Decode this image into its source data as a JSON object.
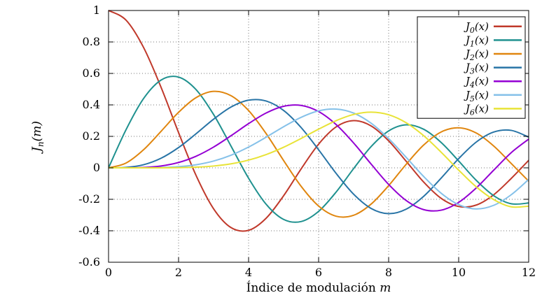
{
  "chart_data": {
    "type": "line",
    "title": "",
    "xlabel": "Índice de modulación m",
    "ylabel": "J_n(m)",
    "xlim": [
      0,
      12
    ],
    "ylim": [
      -0.6,
      1
    ],
    "xticks": [
      0,
      2,
      4,
      6,
      8,
      10,
      12
    ],
    "yticks": [
      -0.6,
      -0.4,
      -0.2,
      0,
      0.2,
      0.4,
      0.6,
      0.8,
      1
    ],
    "grid": "dotted",
    "legend_position": "top-right",
    "x": [
      0,
      0.5,
      1,
      1.5,
      2,
      2.5,
      3,
      3.5,
      4,
      4.5,
      5,
      5.5,
      6,
      6.5,
      7,
      7.5,
      8,
      8.5,
      9,
      9.5,
      10,
      10.5,
      11,
      11.5,
      12
    ],
    "series": [
      {
        "name": "J_0(x)",
        "color": "#c0392b",
        "values": [
          1,
          0.9385,
          0.7652,
          0.5118,
          0.2239,
          -0.0484,
          -0.2601,
          -0.3801,
          -0.3971,
          -0.3205,
          -0.1776,
          -0.0068,
          0.1506,
          0.2601,
          0.3001,
          0.2663,
          0.1717,
          0.0419,
          -0.0903,
          -0.1939,
          -0.2459,
          -0.2366,
          -0.1712,
          -0.0677,
          0.0477
        ]
      },
      {
        "name": "J_1(x)",
        "color": "#1f918f",
        "values": [
          0,
          0.2423,
          0.4401,
          0.5579,
          0.5767,
          0.4971,
          0.3391,
          0.1374,
          -0.066,
          -0.2311,
          -0.3276,
          -0.3414,
          -0.2767,
          -0.1538,
          -0.0047,
          0.1352,
          0.2346,
          0.2731,
          0.2453,
          0.1613,
          0.0435,
          -0.0789,
          -0.1768,
          -0.2284,
          -0.2234
        ]
      },
      {
        "name": "J_2(x)",
        "color": "#e0860f",
        "values": [
          0,
          0.0306,
          0.1149,
          0.2321,
          0.3528,
          0.4461,
          0.4861,
          0.4586,
          0.3641,
          0.2178,
          0.0466,
          -0.1173,
          -0.2429,
          -0.3074,
          -0.3014,
          -0.2303,
          -0.113,
          0.0223,
          0.1448,
          0.2279,
          0.2546,
          0.2216,
          0.139,
          0.0279,
          -0.0849
        ]
      },
      {
        "name": "J_3(x)",
        "color": "#2874a6",
        "values": [
          0,
          0.0026,
          0.0196,
          0.061,
          0.1289,
          0.2166,
          0.3091,
          0.3868,
          0.4302,
          0.4247,
          0.3648,
          0.2561,
          0.1148,
          -0.0353,
          -0.1676,
          -0.2581,
          -0.2911,
          -0.2626,
          -0.1809,
          -0.0653,
          0.0584,
          0.1633,
          0.2273,
          0.2381,
          0.1951
        ]
      },
      {
        "name": "J_4(x)",
        "color": "#9400d3",
        "values": [
          0,
          0.0002,
          0.0025,
          0.0118,
          0.034,
          0.0738,
          0.132,
          0.2044,
          0.2811,
          0.3484,
          0.3912,
          0.3967,
          0.3576,
          0.2748,
          0.1578,
          0.0238,
          -0.1054,
          -0.2077,
          -0.2655,
          -0.2691,
          -0.2196,
          -0.1283,
          -0.015,
          0.0963,
          0.1825
        ]
      },
      {
        "name": "J_5(x)",
        "color": "#85c1e9",
        "values": [
          0,
          0,
          0.0002,
          0.0018,
          0.007,
          0.0195,
          0.043,
          0.0804,
          0.1321,
          0.1947,
          0.2611,
          0.3209,
          0.3621,
          0.3736,
          0.3479,
          0.2835,
          0.1858,
          0.0671,
          -0.055,
          -0.1613,
          -0.2341,
          -0.2611,
          -0.2383,
          -0.1711,
          -0.0735
        ]
      },
      {
        "name": "J_6(x)",
        "color": "#e8e337",
        "values": [
          0,
          0,
          0,
          0.0002,
          0.0012,
          0.0042,
          0.0114,
          0.0254,
          0.0491,
          0.0843,
          0.131,
          0.1868,
          0.2458,
          0.2999,
          0.3392,
          0.3541,
          0.3376,
          0.2867,
          0.2043,
          0.0993,
          -0.0145,
          -0.1203,
          -0.2016,
          -0.2477,
          -0.2437
        ]
      }
    ]
  },
  "colors": {
    "background": "#ffffff",
    "axis": "#000000",
    "grid": "#777777",
    "legend_border": "#000000",
    "legend_fill": "#ffffff"
  }
}
